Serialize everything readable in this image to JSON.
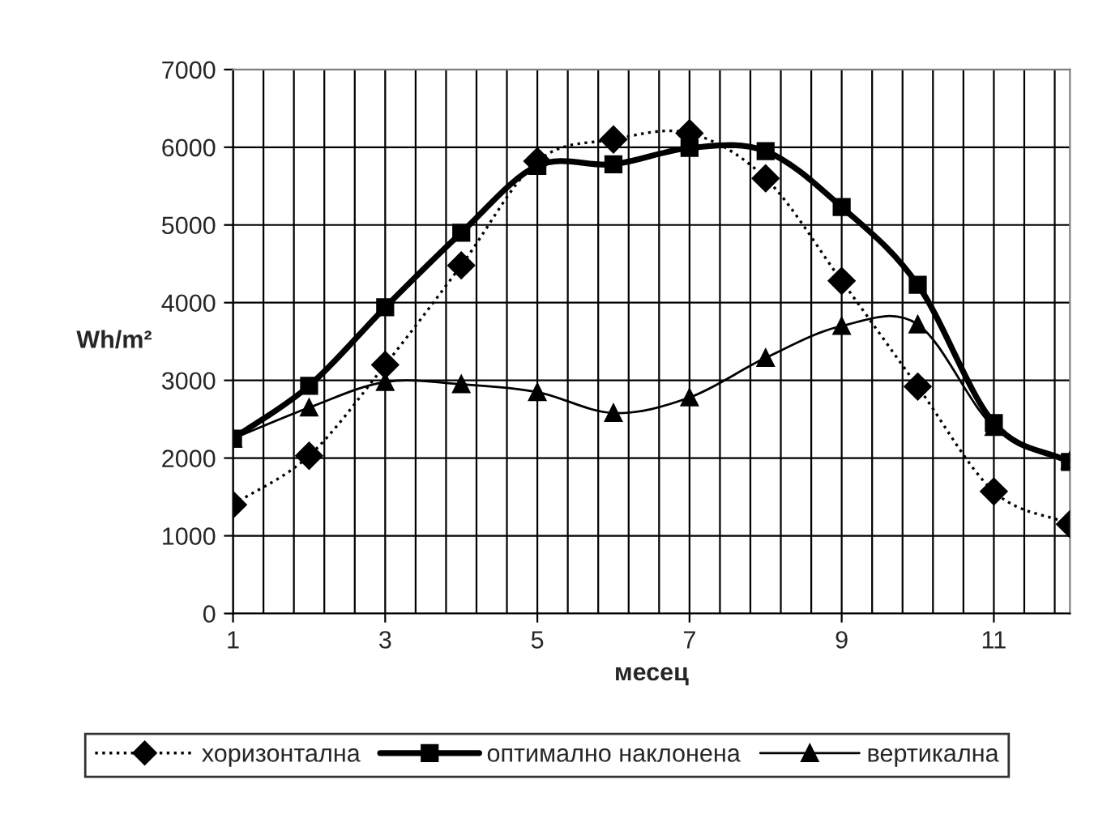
{
  "chart_data": {
    "type": "line",
    "xlabel": "месец",
    "ylabel": "Wh/m²",
    "x": [
      1,
      2,
      3,
      4,
      5,
      6,
      7,
      8,
      9,
      10,
      11,
      12
    ],
    "series": [
      {
        "name": "хоризонтална",
        "color": "#000000",
        "marker": "diamond",
        "line_style": "dotted",
        "values": [
          1400,
          2030,
          3200,
          4480,
          5820,
          6100,
          6180,
          5600,
          4280,
          2920,
          1570,
          1150
        ]
      },
      {
        "name": "оптимално наклонена",
        "color": "#000000",
        "marker": "square",
        "line_style": "solid",
        "values": [
          2250,
          2930,
          3940,
          4900,
          5760,
          5780,
          5990,
          5950,
          5230,
          4230,
          2450,
          1950
        ]
      },
      {
        "name": "вертикална",
        "color": "#000000",
        "marker": "triangle",
        "line_style": "solid",
        "values": [
          2250,
          2650,
          2980,
          2950,
          2850,
          2580,
          2780,
          3290,
          3700,
          3720,
          2400,
          1970
        ]
      }
    ],
    "xlim": [
      1,
      12
    ],
    "xticks": [
      1,
      3,
      5,
      7,
      9,
      11
    ],
    "ylim": [
      0,
      7000
    ],
    "yticks": [
      0,
      1000,
      2000,
      3000,
      4000,
      5000,
      6000,
      7000
    ],
    "grid": true,
    "legend": "bottom"
  }
}
